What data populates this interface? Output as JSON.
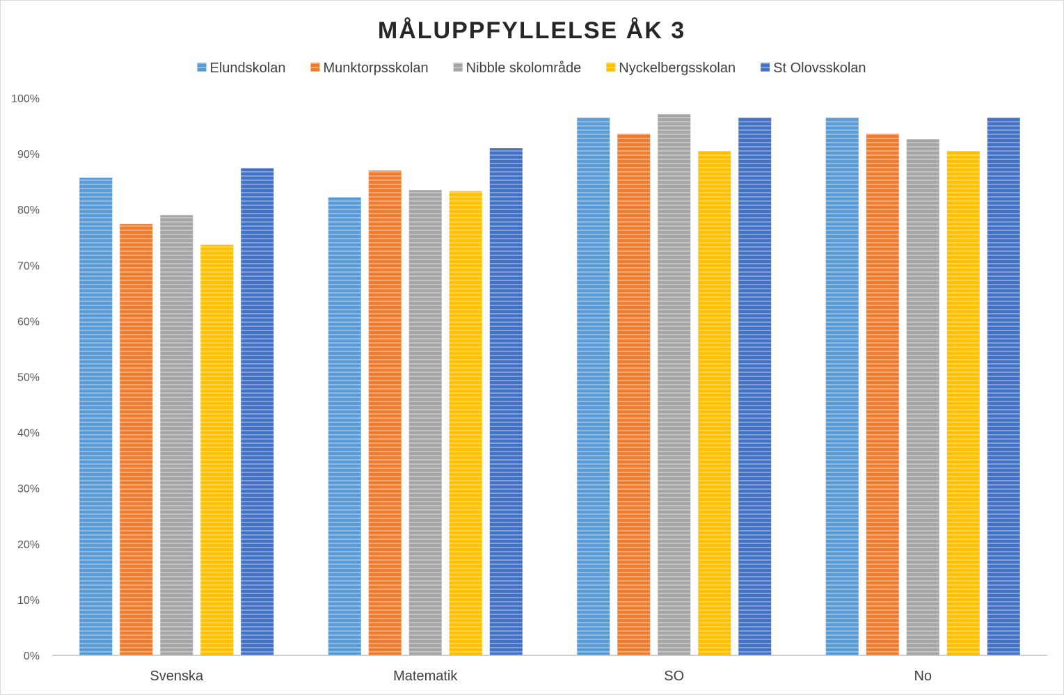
{
  "chart_data": {
    "type": "bar",
    "title": "MÅLUPPFYLLELSE ÅK 3",
    "categories": [
      "Svenska",
      "Matematik",
      "SO",
      "No"
    ],
    "series": [
      {
        "name": "Elundskolan",
        "color": "#5b9bd5",
        "values": [
          0.857,
          0.822,
          0.965,
          0.965
        ]
      },
      {
        "name": "Munktorpsskolan",
        "color": "#ed7d31",
        "values": [
          0.774,
          0.87,
          0.936,
          0.936
        ]
      },
      {
        "name": "Nibble skolområde",
        "color": "#a5a5a5",
        "values": [
          0.79,
          0.835,
          0.971,
          0.926
        ]
      },
      {
        "name": "Nyckelbergsskolan",
        "color": "#ffc000",
        "values": [
          0.737,
          0.833,
          0.905,
          0.905
        ]
      },
      {
        "name": "St Olovsskolan",
        "color": "#4472c4",
        "values": [
          0.874,
          0.91,
          0.965,
          0.965
        ]
      }
    ],
    "ylim": [
      0,
      1
    ],
    "yticks": [
      "0%",
      "10%",
      "20%",
      "30%",
      "40%",
      "50%",
      "60%",
      "70%",
      "80%",
      "90%",
      "100%"
    ],
    "grid": false,
    "legend_position": "top"
  }
}
